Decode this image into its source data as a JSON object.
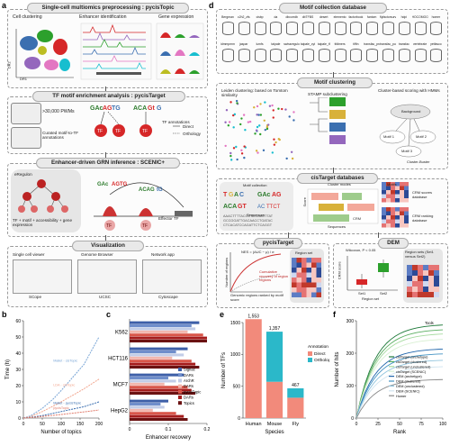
{
  "panels": {
    "a": "a",
    "b": "b",
    "c": "c",
    "d": "d",
    "e": "e",
    "f": "f"
  },
  "a": {
    "title_preprocessing": "Single-cell multiomics preprocessing : pycisTopic",
    "cell_clustering": "Cell clustering",
    "enhancer_identification": "Enhancer identification",
    "gene_expression": "Gene expression",
    "dr1": "DR1",
    "dr2": "DR2",
    "title_enrichment": "TF motif enrichment analysis : pycisTarget",
    "pwms": ">30,000 PWMs",
    "curated": "Curated motif-to-TF annotations",
    "tf_annotations": "TF annotations",
    "direct": "Direct",
    "orthology": "Orthology",
    "tf": "TF",
    "title_grn": "Enhancer-driven GRN inference : SCENIC+",
    "eregulon": "eRegulon",
    "formula": "TF + motif + accessibility + gene expression",
    "effector": "Effector TF",
    "title_vis": "Visualization",
    "single_cell_viewer": "Single cell viewer",
    "genome_browser": "Genome Browser",
    "network_app": "Network app",
    "scope": "SCope",
    "ucsc": "UCSC",
    "cytoscape": "Cytoscape"
  },
  "d": {
    "title_collection": "Motif collection database",
    "collections": [
      "Bergman",
      "c2h2_zfs",
      "cisbp",
      "da",
      "dbcorrdb",
      "dbTFBS",
      "desert",
      "elemento",
      "factorbook",
      "fantom",
      "flyfactorsurvey",
      "hdpi",
      "HOCOMOCO",
      "homer",
      "idmmpmm",
      "jaspar",
      "kznfs",
      "taipale",
      "swissregulon",
      "taipale_cyt",
      "taipale_tf",
      "tfdimers",
      "tiffin",
      "transfac_pro",
      "transfac_public",
      "transfac",
      "vertebrate",
      "yetfasco"
    ],
    "title_clustering": "Motif clustering",
    "leiden": "Leiden clustering: based on Tomtom similarity",
    "stamp": "STAMP subclustering",
    "cluster_score": "Cluster-based scoring with HMMs",
    "background": "Background",
    "motif1": "Motif 1",
    "motif2": "Motif 2",
    "motif3": "Motif 3",
    "cluster_buster": "Cluster-Buster",
    "title_cistarget": "cisTarget databases",
    "motif_collection": "Motif collection",
    "cluster_modes": "Cluster modes",
    "crm": "CRM",
    "score": "Score",
    "sequences": "Sequences",
    "crm_scores_db": "CRM scores database",
    "crm_ranking_db": "CRM ranking database",
    "motifs": "Motifs",
    "title_pycistarget": "pycisTarget",
    "nes_formula": "NES = (AUC − μ) / σ",
    "cumulative": "Cumulative recovery of region regions",
    "number_of_regions": "Number of regions",
    "genomic_regions": "Genomic regions ranked by motif score",
    "region_set": "Region set",
    "title_dem": "DEM",
    "wilcoxon": "Wilcoxon, P < 0.05",
    "crm_score": "CRM score",
    "set1": "Set1",
    "set2": "Set2",
    "region_sets": "Region sets (Set1 versus Set2)",
    "region_set_label": "Region set"
  },
  "chart_data": [
    {
      "panel": "b",
      "type": "line",
      "xlabel": "Number of topics",
      "ylabel": "Time (h)",
      "xlim": [
        0,
        200
      ],
      "ylim": [
        0,
        60
      ],
      "xticks": [
        0,
        50,
        100,
        150,
        200
      ],
      "yticks": [
        0,
        10,
        20,
        30,
        40,
        50,
        60
      ],
      "series": [
        {
          "name": "Mallet - cisTopic",
          "color": "#7aa6d6",
          "x": [
            0,
            20,
            50,
            80,
            100,
            130,
            160,
            200
          ],
          "y": [
            0,
            1.5,
            6,
            12,
            17,
            25,
            33,
            50
          ]
        },
        {
          "name": "LDA - cisTopic",
          "color": "#f2a58d",
          "x": [
            0,
            20,
            50,
            80,
            100,
            130,
            160,
            200
          ],
          "y": [
            0,
            1,
            4,
            7.5,
            10,
            14,
            18,
            24
          ]
        },
        {
          "name": "Mallet - pycisTopic",
          "color": "#3b6fb0",
          "x": [
            0,
            20,
            50,
            80,
            100,
            130,
            160,
            200
          ],
          "y": [
            0,
            0.5,
            1.5,
            3,
            4,
            5.5,
            7,
            10
          ]
        },
        {
          "name": "pycisTopic",
          "color": "#e07a6a",
          "x": [
            0,
            20,
            50,
            80,
            100,
            130,
            160,
            200
          ],
          "y": [
            0,
            0.3,
            1,
            1.7,
            2.2,
            3,
            3.8,
            5
          ]
        }
      ]
    },
    {
      "panel": "c",
      "type": "bar",
      "xlabel": "Enhancer recovery",
      "xlim": [
        0,
        0.2
      ],
      "xticks": [
        0,
        0.1,
        0.2
      ],
      "categories": [
        "K562",
        "HCT116",
        "MCF7",
        "HepG2"
      ],
      "series": [
        {
          "name": "Signac",
          "color": "#3d5fa8",
          "values": [
            0.18,
            0.15,
            0.14,
            0.1
          ]
        },
        {
          "name": "DARs",
          "color": "#6f8ecb",
          "values": [
            0.16,
            0.12,
            0.1,
            0.08
          ]
        },
        {
          "name": "ArchR",
          "color": "#c2cde8",
          "values": [
            0.17,
            0.14,
            0.12,
            0.09
          ]
        },
        {
          "name": "DARs",
          "color": "#f2b7ae",
          "values": [
            0.15,
            0.11,
            0.09,
            0.06
          ]
        },
        {
          "name": "pycisTopic",
          "color": "#d9564a",
          "values": [
            0.19,
            0.16,
            0.15,
            0.12
          ]
        },
        {
          "name": "DARs",
          "color": "#a51c1c",
          "values": [
            0.2,
            0.17,
            0.16,
            0.14
          ]
        },
        {
          "name": "Topics",
          "color": "#6b1212",
          "values": [
            0.2,
            0.18,
            0.17,
            0.15
          ]
        }
      ]
    },
    {
      "panel": "e",
      "type": "bar",
      "xlabel": "Species",
      "ylabel": "Number of TFs",
      "ylim": [
        0,
        1500
      ],
      "yticks": [
        0,
        500,
        1000,
        1500
      ],
      "categories": [
        "Human",
        "Mouse",
        "Fly"
      ],
      "totals": [
        1553,
        1357,
        467
      ],
      "legend_title": "Annotation",
      "series": [
        {
          "name": "Direct",
          "color": "#f28a7b",
          "values": [
            1553,
            570,
            320
          ]
        },
        {
          "name": "Orthology",
          "color": "#2bb8c9",
          "values": [
            0,
            787,
            147
          ]
        }
      ]
    },
    {
      "panel": "f",
      "type": "line",
      "xlabel": "Rank",
      "ylabel": "Number of hits",
      "xlim": [
        0,
        100
      ],
      "ylim": [
        0,
        300
      ],
      "xticks": [
        0,
        25,
        50,
        75,
        100
      ],
      "yticks": [
        0,
        100,
        200,
        300
      ],
      "legend_title": "Tools",
      "series": [
        {
          "name": "cisTarget (archetype)",
          "color": "#1b7837",
          "final": 290
        },
        {
          "name": "cisTarget (clustered)",
          "color": "#5aae61",
          "final": 275
        },
        {
          "name": "cisTarget (unclustered)",
          "color": "#a6dba0",
          "final": 262
        },
        {
          "name": "cisTarget (SCENIC)",
          "color": "#d9f0d3",
          "final": 245
        },
        {
          "name": "DEM (archetype)",
          "color": "#2166ac",
          "final": 215
        },
        {
          "name": "DEM (clustered)",
          "color": "#4393c3",
          "final": 200
        },
        {
          "name": "DEM (unclustered)",
          "color": "#92c5de",
          "final": 180
        },
        {
          "name": "DEM (SCENIC)",
          "color": "#d1e5f0",
          "final": 160
        },
        {
          "name": "Homer",
          "color": "#888888",
          "final": 120
        }
      ]
    }
  ]
}
